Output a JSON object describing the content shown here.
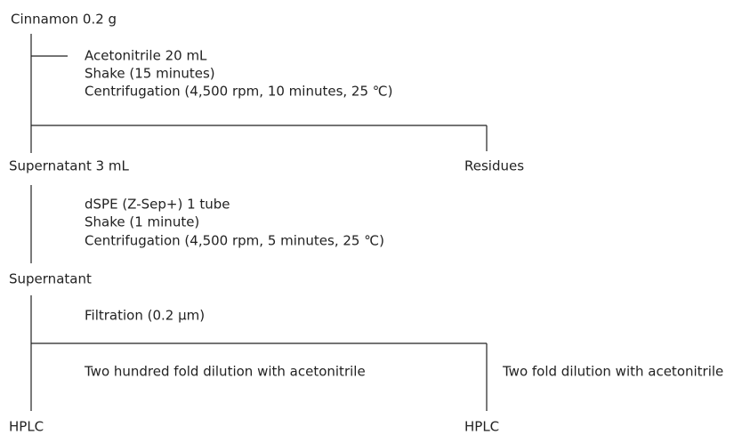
{
  "nodes": [
    {
      "label": "Cinnamon 0.2 g"
    },
    {
      "label": "Supernatant 3 mL"
    },
    {
      "label": "Residues"
    },
    {
      "label": "Supernatant"
    },
    {
      "label": "HPLC"
    },
    {
      "label": "HPLC"
    }
  ],
  "steps": [
    {
      "lines": [
        "Acetonitrile 20 mL",
        "Shake (15 minutes)",
        "Centrifugation (4,500 rpm, 10 minutes, 25 ℃)"
      ]
    },
    {
      "lines": [
        "dSPE (Z-Sep+) 1 tube",
        "Shake (1 minute)",
        "Centrifugation (4,500 rpm, 5 minutes, 25 ℃)"
      ]
    },
    {
      "lines": [
        "Filtration (0.2 μm)"
      ]
    },
    {
      "lines": [
        "Two hundred fold dilution with acetonitrile"
      ]
    },
    {
      "lines": [
        "Two fold dilution with acetonitrile"
      ]
    }
  ]
}
